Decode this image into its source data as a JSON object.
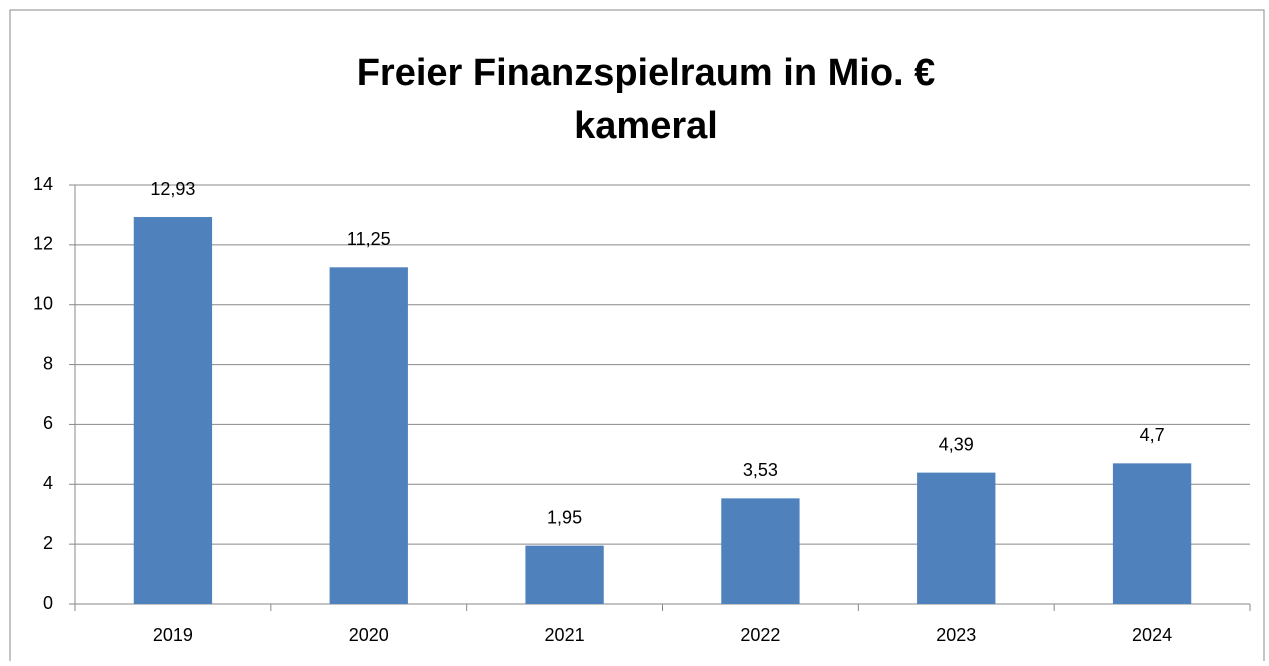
{
  "chart_data": {
    "type": "bar",
    "title": "Freier Finanzspielraum in Mio. €",
    "subtitle": "kameral",
    "categories": [
      "2019",
      "2020",
      "2021",
      "2022",
      "2023",
      "2024"
    ],
    "values": [
      12.93,
      11.25,
      1.95,
      3.53,
      4.39,
      4.7
    ],
    "value_labels": [
      "12,93",
      "11,25",
      "1,95",
      "3,53",
      "4,39",
      "4,7"
    ],
    "color": "#4f81bd",
    "ylim": [
      0,
      14
    ],
    "yticks": [
      0,
      2,
      4,
      6,
      8,
      10,
      12,
      14
    ],
    "grid": true
  }
}
